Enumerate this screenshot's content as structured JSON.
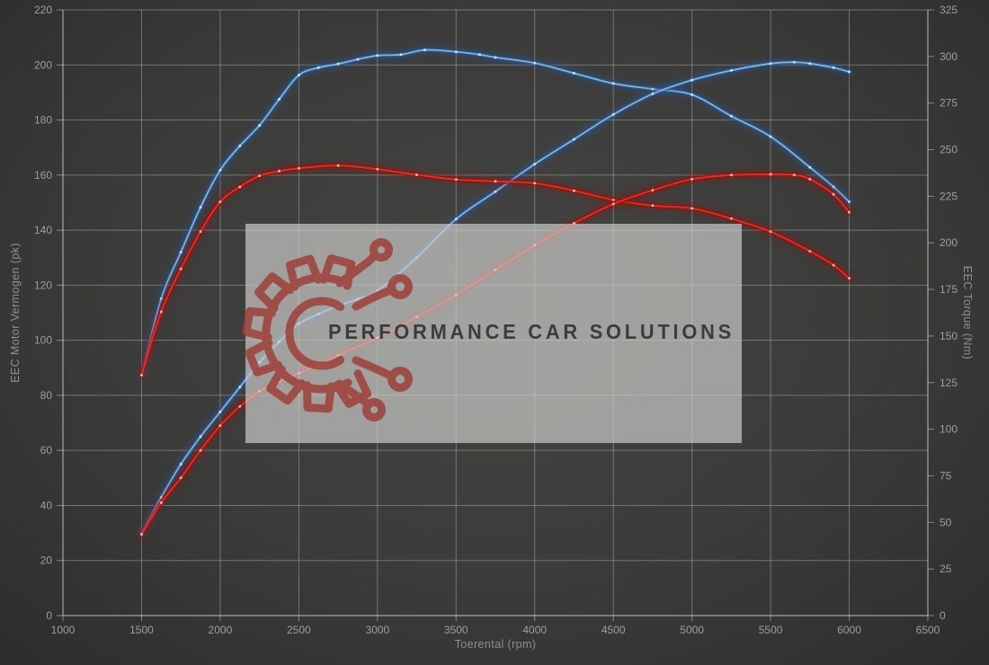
{
  "chart_data": {
    "type": "line",
    "title": "",
    "xlabel": "Toerental (rpm)",
    "ylabel_left": "EEC Motor Vermogen (pk)",
    "ylabel_right": "EEC Torque (Nm)",
    "x_axis": {
      "min": 1000,
      "max": 6500,
      "step": 500,
      "ticks": [
        1000,
        1500,
        2000,
        2500,
        3000,
        3500,
        4000,
        4500,
        5000,
        5500,
        6000,
        6500
      ]
    },
    "left_axis": {
      "min": 0,
      "max": 220,
      "step": 20,
      "ticks": [
        0,
        20,
        40,
        60,
        80,
        100,
        120,
        140,
        160,
        180,
        200,
        220
      ]
    },
    "right_axis": {
      "min": 0,
      "max": 325,
      "step": 25,
      "ticks": [
        0,
        25,
        50,
        75,
        100,
        125,
        150,
        175,
        200,
        225,
        250,
        275,
        300,
        325
      ]
    },
    "grid": true,
    "legend": "none",
    "series": [
      {
        "name": "blue-torque",
        "axis": "right",
        "color_core": "#7cb5e8",
        "color_glow": "#2a5a96",
        "color_marker": "#d8ecff",
        "points": [
          [
            1500,
            129
          ],
          [
            1625,
            170
          ],
          [
            1750,
            195
          ],
          [
            1875,
            219
          ],
          [
            2000,
            239
          ],
          [
            2125,
            252
          ],
          [
            2250,
            263
          ],
          [
            2375,
            277
          ],
          [
            2500,
            290
          ],
          [
            2625,
            294
          ],
          [
            2750,
            296
          ],
          [
            2875,
            298.5
          ],
          [
            3000,
            300.5
          ],
          [
            3150,
            301
          ],
          [
            3300,
            303.5
          ],
          [
            3500,
            302.5
          ],
          [
            3650,
            301
          ],
          [
            3750,
            299.5
          ],
          [
            4000,
            296.5
          ],
          [
            4250,
            291
          ],
          [
            4500,
            285.5
          ],
          [
            4750,
            282.5
          ],
          [
            5000,
            279.5
          ],
          [
            5250,
            268
          ],
          [
            5500,
            257
          ],
          [
            5750,
            240.5
          ],
          [
            5900,
            230
          ],
          [
            6000,
            222
          ]
        ]
      },
      {
        "name": "blue-power",
        "axis": "left",
        "color_core": "#7cb5e8",
        "color_glow": "#2a5a96",
        "color_marker": "#d8ecff",
        "points": [
          [
            1500,
            30
          ],
          [
            1625,
            43
          ],
          [
            1750,
            55
          ],
          [
            1875,
            65
          ],
          [
            2000,
            74
          ],
          [
            2125,
            83
          ],
          [
            2250,
            92
          ],
          [
            2375,
            99.5
          ],
          [
            2500,
            106
          ],
          [
            2625,
            109.5
          ],
          [
            2750,
            112.5
          ],
          [
            2875,
            115
          ],
          [
            3000,
            118
          ],
          [
            3250,
            130
          ],
          [
            3500,
            144
          ],
          [
            3750,
            154
          ],
          [
            4000,
            164
          ],
          [
            4250,
            173
          ],
          [
            4500,
            182
          ],
          [
            4750,
            189.5
          ],
          [
            5000,
            194.5
          ],
          [
            5250,
            198
          ],
          [
            5500,
            200.5
          ],
          [
            5650,
            201
          ],
          [
            5750,
            200.5
          ],
          [
            5900,
            199
          ],
          [
            6000,
            197.5
          ]
        ]
      },
      {
        "name": "red-torque",
        "axis": "right",
        "color_core": "#ff231a",
        "color_glow": "#8a130c",
        "color_marker": "#ffc6bf",
        "points": [
          [
            1500,
            129
          ],
          [
            1625,
            163
          ],
          [
            1750,
            186
          ],
          [
            1875,
            206
          ],
          [
            2000,
            222
          ],
          [
            2125,
            230
          ],
          [
            2250,
            236
          ],
          [
            2375,
            238.5
          ],
          [
            2500,
            240
          ],
          [
            2750,
            241.5
          ],
          [
            3000,
            239.5
          ],
          [
            3250,
            236.5
          ],
          [
            3500,
            234
          ],
          [
            3750,
            233
          ],
          [
            4000,
            232
          ],
          [
            4250,
            228
          ],
          [
            4500,
            223
          ],
          [
            4750,
            220
          ],
          [
            5000,
            218.5
          ],
          [
            5250,
            213
          ],
          [
            5500,
            206
          ],
          [
            5750,
            195.5
          ],
          [
            5900,
            188
          ],
          [
            6000,
            181
          ]
        ]
      },
      {
        "name": "red-power",
        "axis": "left",
        "color_core": "#ff231a",
        "color_glow": "#8a130c",
        "color_marker": "#ffc6bf",
        "points": [
          [
            1500,
            29.5
          ],
          [
            1625,
            41
          ],
          [
            1750,
            50
          ],
          [
            1875,
            60
          ],
          [
            2000,
            69
          ],
          [
            2125,
            76
          ],
          [
            2250,
            81.5
          ],
          [
            2375,
            85
          ],
          [
            2500,
            88
          ],
          [
            2625,
            91
          ],
          [
            2750,
            94.5
          ],
          [
            3000,
            101
          ],
          [
            3250,
            108.5
          ],
          [
            3500,
            116.5
          ],
          [
            3750,
            125.5
          ],
          [
            4000,
            134.5
          ],
          [
            4250,
            142.5
          ],
          [
            4500,
            149.5
          ],
          [
            4750,
            154.5
          ],
          [
            5000,
            158.5
          ],
          [
            5250,
            160
          ],
          [
            5500,
            160.3
          ],
          [
            5650,
            160
          ],
          [
            5750,
            158.5
          ],
          [
            5900,
            153
          ],
          [
            6000,
            146.5
          ]
        ]
      }
    ]
  },
  "watermark": {
    "text": "PERFORMANCE CAR SOLUTIONS",
    "box_color": "rgba(203,203,200,0.70)",
    "logo_color": "#9e4038",
    "text_color": "#3c3c3c"
  },
  "style": {
    "grid_color": "rgba(255,255,255,0.30)",
    "axis_color": "rgba(255,255,255,0.40)",
    "tick_label_color": "#9e9e9e"
  }
}
